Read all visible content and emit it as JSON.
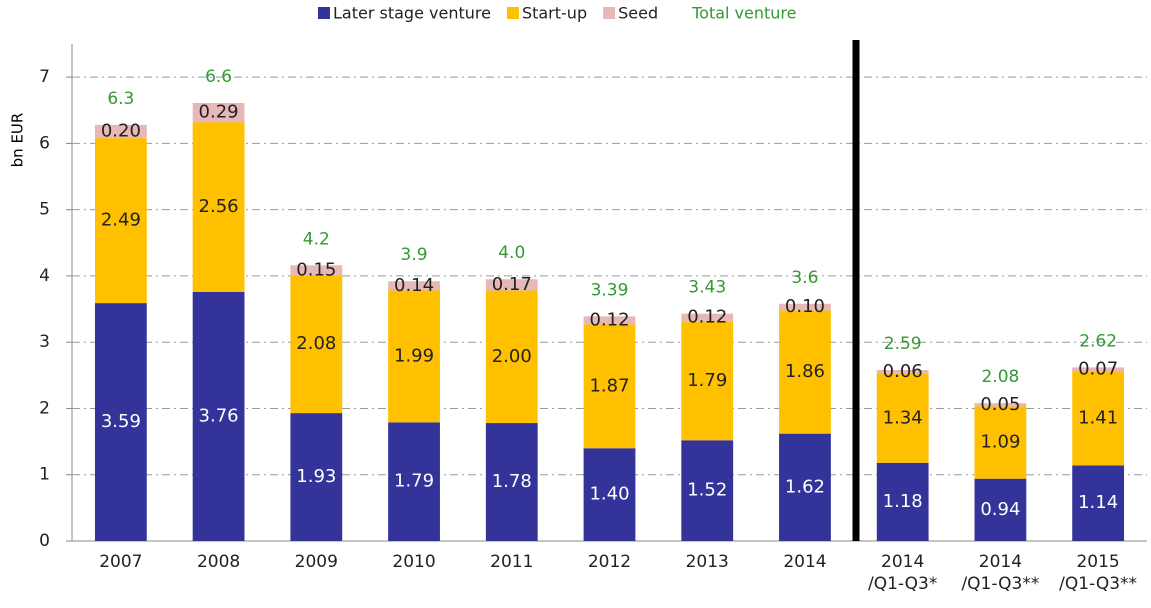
{
  "chart_data": {
    "type": "stacked-bar",
    "y_label": "bn EUR",
    "categories": [
      "2007",
      "2008",
      "2009",
      "2010",
      "2011",
      "2012",
      "2013",
      "2014",
      "2014\n/Q1-Q3*",
      "2014\n/Q1-Q3**",
      "2015\n/Q1-Q3**"
    ],
    "series": [
      {
        "name": "Later stage venture",
        "color": "#333399",
        "label_color": "#ffffff",
        "values": [
          3.59,
          3.76,
          1.93,
          1.79,
          1.78,
          1.4,
          1.52,
          1.62,
          1.18,
          0.94,
          1.14
        ],
        "value_labels": [
          "3.59",
          "3.76",
          "1.93",
          "1.79",
          "1.78",
          "1.40",
          "1.52",
          "1.62",
          "1.18",
          "0.94",
          "1.14"
        ]
      },
      {
        "name": "Start-up",
        "color": "#ffc000",
        "label_color": "#222222",
        "values": [
          2.49,
          2.56,
          2.08,
          1.99,
          2.0,
          1.87,
          1.79,
          1.86,
          1.34,
          1.09,
          1.41
        ],
        "value_labels": [
          "2.49",
          "2.56",
          "2.08",
          "1.99",
          "2.00",
          "1.87",
          "1.79",
          "1.86",
          "1.34",
          "1.09",
          "1.41"
        ]
      },
      {
        "name": "Seed",
        "color": "#e6b8b7",
        "label_color": "#222222",
        "values": [
          0.2,
          0.29,
          0.15,
          0.14,
          0.17,
          0.12,
          0.12,
          0.1,
          0.06,
          0.05,
          0.07
        ],
        "value_labels": [
          "0.20",
          "0.29",
          "0.15",
          "0.14",
          "0.17",
          "0.12",
          "0.12",
          "0.10",
          "0.06",
          "0.05",
          "0.07"
        ]
      }
    ],
    "total": {
      "name": "Total venture",
      "color": "#339933",
      "values": [
        6.3,
        6.6,
        4.2,
        3.9,
        4.0,
        3.39,
        3.43,
        3.6,
        2.59,
        2.08,
        2.62
      ],
      "value_labels": [
        "6.3",
        "6.6",
        "4.2",
        "3.9",
        "4.0",
        "3.39",
        "3.43",
        "3.6",
        "2.59",
        "2.08",
        "2.62"
      ]
    },
    "ylim": [
      0,
      7.5
    ],
    "yticks": [
      0,
      1,
      2,
      3,
      4,
      5,
      6,
      7
    ],
    "grid": true
  }
}
